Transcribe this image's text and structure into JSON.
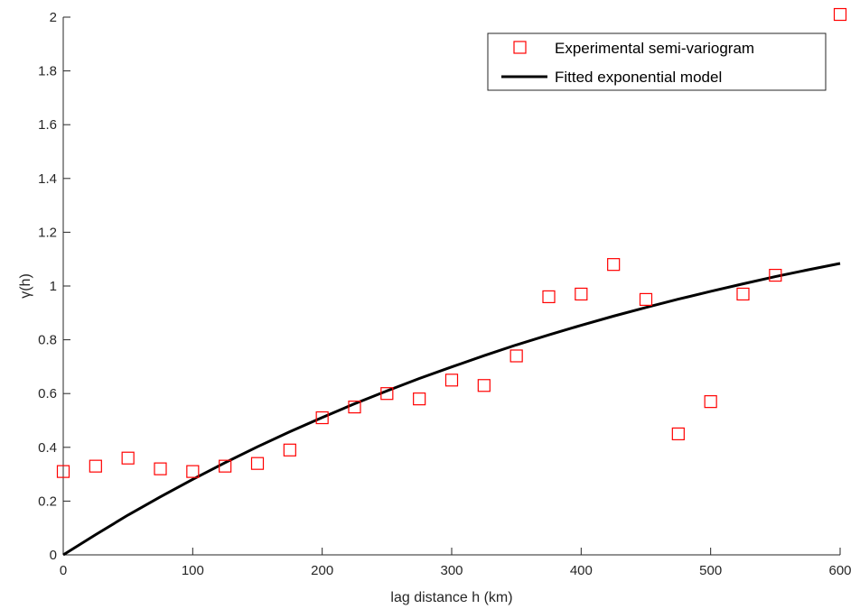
{
  "chart_data": {
    "type": "scatter",
    "title": "",
    "xlabel": "lag distance h (km)",
    "ylabel": "γ(h)",
    "xlim": [
      0,
      600
    ],
    "ylim": [
      0,
      2
    ],
    "xticks": [
      0,
      100,
      200,
      300,
      400,
      500,
      600
    ],
    "yticks": [
      0,
      0.2,
      0.4,
      0.6,
      0.8,
      1,
      1.2,
      1.4,
      1.6,
      1.8,
      2
    ],
    "ytick_labels": [
      "0",
      "0.2",
      "0.4",
      "0.6",
      "0.8",
      "1",
      "1.2",
      "1.4",
      "1.6",
      "1.8",
      "2"
    ],
    "grid": false,
    "legend_position": "top-right",
    "series": [
      {
        "name": "Experimental semi-variogram",
        "type": "scatter",
        "marker": "square",
        "color": "#ff0000",
        "x": [
          0,
          25,
          50,
          75,
          100,
          125,
          150,
          175,
          200,
          225,
          250,
          275,
          300,
          325,
          350,
          375,
          400,
          425,
          450,
          475,
          500,
          525,
          550,
          600
        ],
        "y": [
          0.31,
          0.33,
          0.36,
          0.32,
          0.31,
          0.33,
          0.34,
          0.39,
          0.51,
          0.55,
          0.6,
          0.58,
          0.65,
          0.63,
          0.74,
          0.96,
          0.97,
          1.08,
          0.95,
          0.45,
          0.57,
          0.97,
          1.04,
          2.01
        ]
      },
      {
        "name": "Fitted exponential model",
        "type": "line",
        "color": "#000000",
        "x": [
          0,
          25,
          50,
          75,
          100,
          125,
          150,
          175,
          200,
          225,
          250,
          275,
          300,
          325,
          350,
          375,
          400,
          425,
          450,
          475,
          500,
          525,
          550,
          575,
          600
        ],
        "y": [
          0,
          0.075,
          0.148,
          0.216,
          0.281,
          0.343,
          0.402,
          0.458,
          0.511,
          0.562,
          0.61,
          0.656,
          0.699,
          0.741,
          0.781,
          0.818,
          0.854,
          0.888,
          0.92,
          0.951,
          0.98,
          1.008,
          1.035,
          1.06,
          1.084
        ]
      }
    ]
  }
}
